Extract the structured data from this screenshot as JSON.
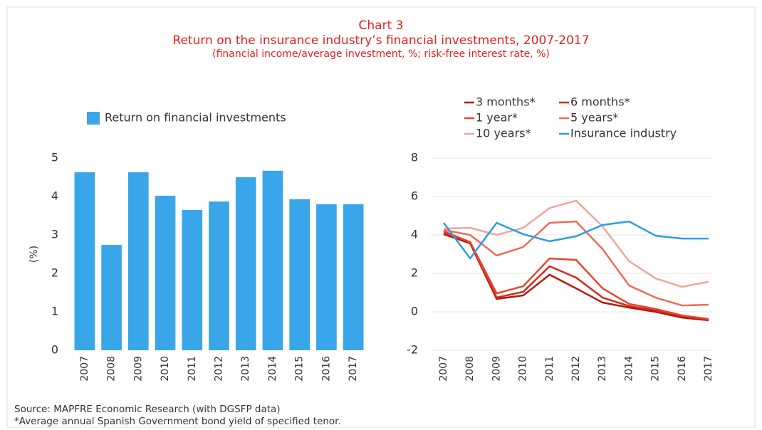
{
  "header": {
    "label": "Chart 3",
    "title": "Return on the insurance industry’s financial investments, 2007-2017",
    "subtitle": "(financial income/average investment, %; risk-free interest rate, %)"
  },
  "notes": [
    "Source: MAPFRE Economic Research (with DGSFP data)",
    "*Average annual Spanish Government bond yield of specified tenor."
  ],
  "chart_data": [
    {
      "type": "bar",
      "ylabel": "(%)",
      "legend": "top-left",
      "categories": [
        "2007",
        "2008",
        "2009",
        "2010",
        "2011",
        "2012",
        "2013",
        "2014",
        "2015",
        "2016",
        "2017"
      ],
      "series": [
        {
          "name": "Return on financial investments",
          "color": "#3aa6ea",
          "values": [
            4.63,
            2.74,
            4.63,
            4.02,
            3.65,
            3.87,
            4.5,
            4.67,
            3.93,
            3.8,
            3.8
          ]
        }
      ],
      "ylim": [
        0,
        5
      ],
      "yticks": [
        0,
        1,
        2,
        3,
        4,
        5
      ],
      "grid": false
    },
    {
      "type": "line",
      "legend": "top",
      "categories": [
        "2007",
        "2008",
        "2009",
        "2010",
        "2011",
        "2012",
        "2013",
        "2014",
        "2015",
        "2016",
        "2017"
      ],
      "series": [
        {
          "name": "3 months*",
          "color": "#b8140c",
          "values": [
            4.04,
            3.56,
            0.67,
            0.85,
            1.93,
            1.22,
            0.48,
            0.22,
            0,
            -0.3,
            -0.44
          ]
        },
        {
          "name": "6 months*",
          "color": "#d22a1b",
          "values": [
            4.11,
            3.63,
            0.74,
            1.04,
            2.37,
            1.78,
            0.74,
            0.3,
            0.07,
            -0.22,
            -0.41
          ]
        },
        {
          "name": "1 year*",
          "color": "#e8452e",
          "values": [
            4.19,
            3.63,
            0.96,
            1.33,
            2.78,
            2.7,
            1.22,
            0.41,
            0.15,
            -0.19,
            -0.37
          ]
        },
        {
          "name": "5 years*",
          "color": "#ef6a5a",
          "values": [
            4.26,
            4.0,
            2.93,
            3.37,
            4.63,
            4.7,
            3.26,
            1.37,
            0.74,
            0.33,
            0.37
          ]
        },
        {
          "name": "10 years*",
          "color": "#f4a49a",
          "values": [
            4.33,
            4.37,
            4.0,
            4.37,
            5.4,
            5.78,
            4.44,
            2.63,
            1.74,
            1.3,
            1.56
          ]
        },
        {
          "name": "Insurance industry",
          "color": "#2b9de0",
          "values": [
            4.63,
            2.78,
            4.63,
            4.04,
            3.67,
            3.93,
            4.52,
            4.7,
            3.96,
            3.81,
            3.81
          ]
        }
      ],
      "ylim": [
        -2,
        8
      ],
      "yticks": [
        -2,
        0,
        2,
        4,
        6,
        8
      ],
      "grid": true
    }
  ]
}
